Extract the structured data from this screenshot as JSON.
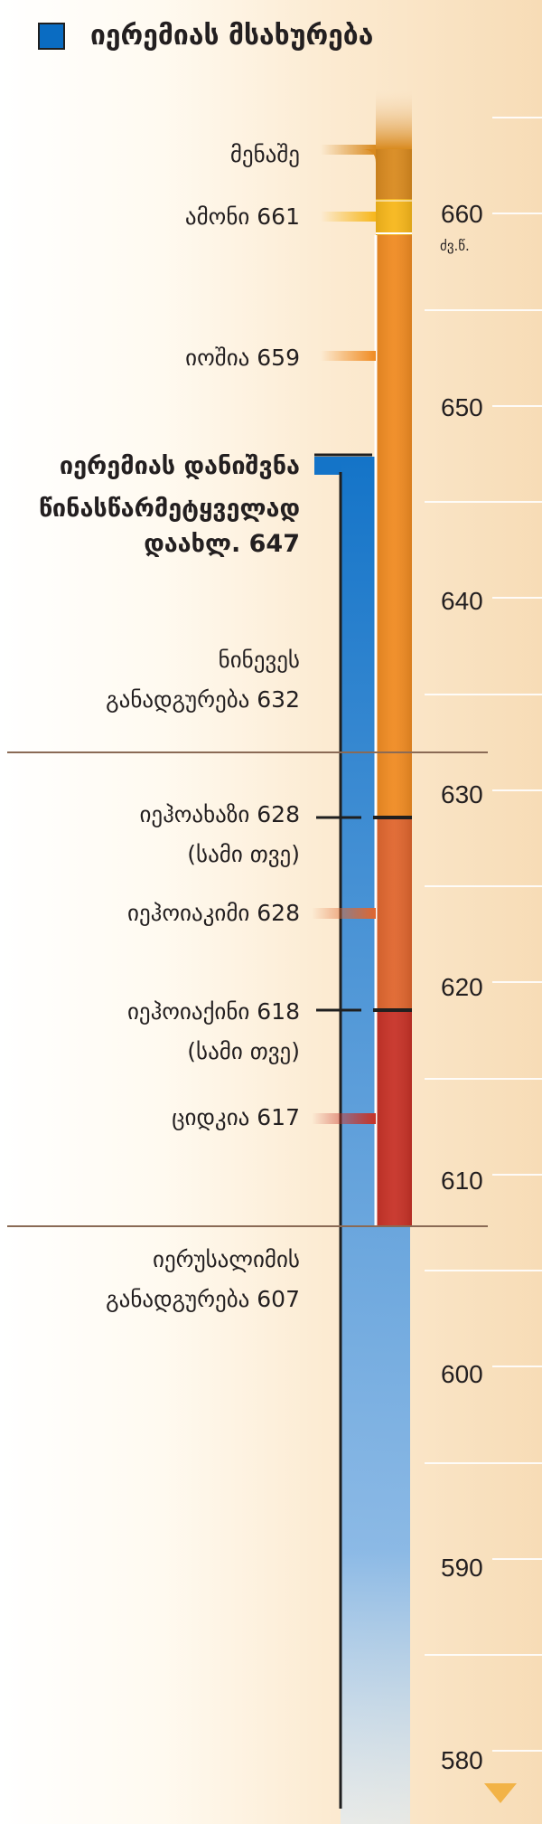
{
  "legend": {
    "label": "იერემიას მსახურება",
    "color": "#0a6cc2"
  },
  "axis": {
    "unit": "ძვ.წ.",
    "ticks": [
      "660",
      "650",
      "640",
      "630",
      "620",
      "610",
      "600",
      "590",
      "580"
    ]
  },
  "events": [
    {
      "id": "manasseh",
      "text": "მენაშე"
    },
    {
      "id": "amon",
      "text": "ამონი 661"
    },
    {
      "id": "josiah",
      "text": "იოშია 659"
    },
    {
      "id": "appointment",
      "lines": [
        "იერემიას დანიშვნა",
        "წინასწარმეტყველად",
        "დაახლ. 647"
      ]
    },
    {
      "id": "nineveh",
      "lines": [
        "ნინევეს",
        "განადგურება 632"
      ]
    },
    {
      "id": "jehoahaz",
      "lines": [
        "იეჰოახაზი 628",
        "(სამი თვე)"
      ]
    },
    {
      "id": "jehoiakim",
      "text": "იეჰოიაკიმი 628"
    },
    {
      "id": "jehoiachin",
      "lines": [
        "იეჰოიაქინი 618",
        "(სამი თვე)"
      ]
    },
    {
      "id": "zedekiah",
      "text": "ციდკია 617"
    },
    {
      "id": "jerusalem",
      "lines": [
        "იერუსალიმის",
        "განადგურება 607"
      ]
    }
  ],
  "colors": {
    "manasseh": "#d98a1f",
    "amon": "#f7b71b",
    "josiah": "#f08b22",
    "jehoiakim": "#e0662e",
    "zedekiah": "#c73227",
    "ministry": "#0a6cc2"
  }
}
